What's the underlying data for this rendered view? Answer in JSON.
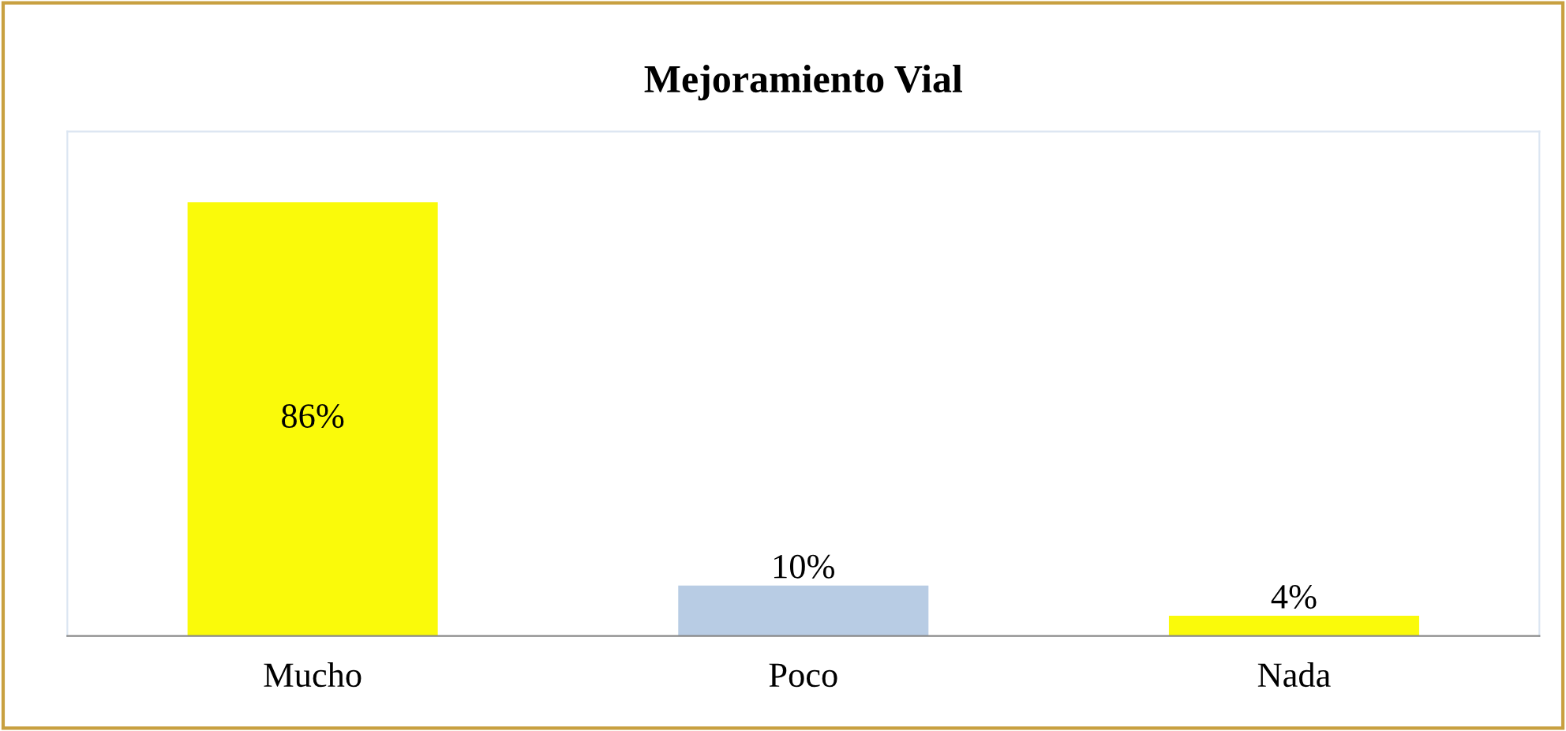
{
  "chart_data": {
    "type": "bar",
    "title": "Mejoramiento Vial",
    "categories": [
      "Mucho",
      "Poco",
      "Nada"
    ],
    "values": [
      86,
      10,
      4
    ],
    "colors": [
      "#fafa0a",
      "#b8cce4",
      "#fafa0a"
    ],
    "value_labels": [
      "86%",
      "10%",
      "4%"
    ],
    "ylim": [
      0,
      100
    ],
    "tick_labels": "x",
    "grid": false,
    "legend": false
  }
}
